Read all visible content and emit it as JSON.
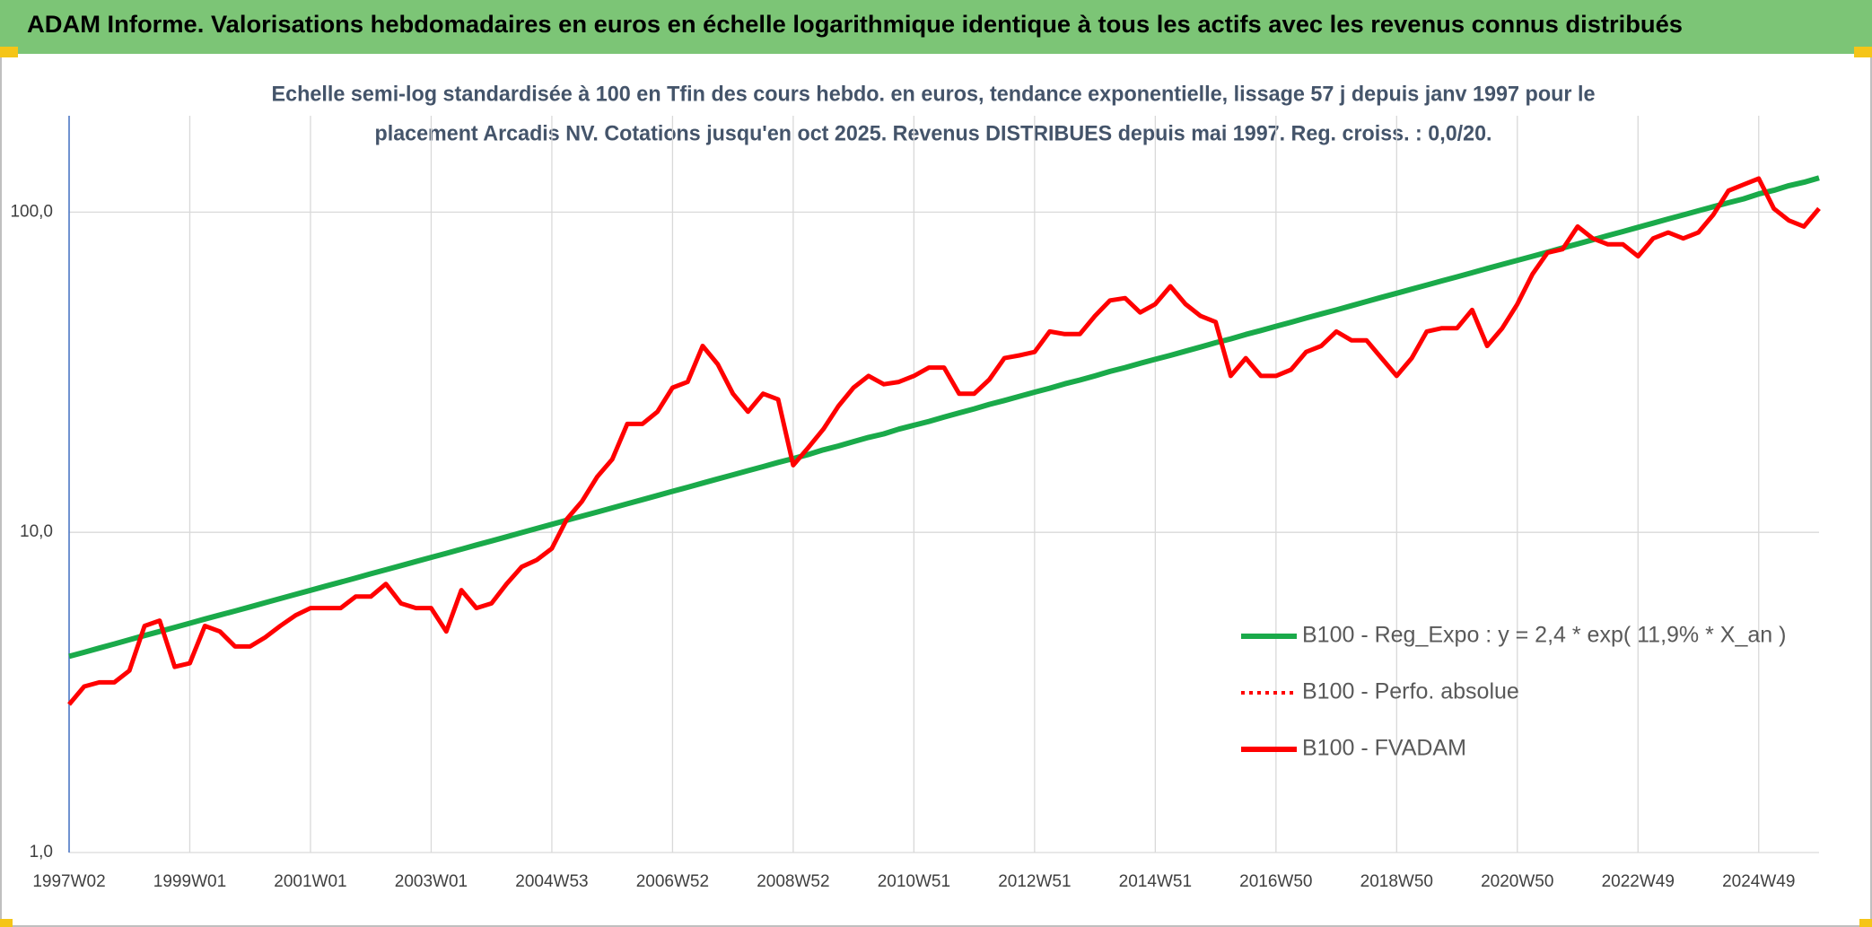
{
  "header": {
    "title": "ADAM Informe. Valorisations hebdomadaires en euros en échelle logarithmique identique à tous les actifs avec les revenus connus distribués"
  },
  "chart_data": {
    "type": "line",
    "subtitle": [
      "Echelle semi-log standardisée à 100 en Tfin des cours hebdo. en euros, tendance exponentielle, lissage 57 j depuis janv 1997 pour le",
      "placement Arcadis NV. Cotations jusqu'en oct 2025. Revenus DISTRIBUES depuis mai 1997. Reg. croiss. : 0,0/20."
    ],
    "categories": [
      "1997W02",
      null,
      null,
      null,
      null,
      null,
      null,
      null,
      "1999W01",
      null,
      null,
      null,
      null,
      null,
      null,
      null,
      "2001W01",
      null,
      null,
      null,
      null,
      null,
      null,
      null,
      "2003W01",
      null,
      null,
      null,
      null,
      null,
      null,
      null,
      "2004W53",
      null,
      null,
      null,
      null,
      null,
      null,
      null,
      "2006W52",
      null,
      null,
      null,
      null,
      null,
      null,
      null,
      "2008W52",
      null,
      null,
      null,
      null,
      null,
      null,
      null,
      "2010W51",
      null,
      null,
      null,
      null,
      null,
      null,
      null,
      "2012W51",
      null,
      null,
      null,
      null,
      null,
      null,
      null,
      "2014W51",
      null,
      null,
      null,
      null,
      null,
      null,
      null,
      "2016W50",
      null,
      null,
      null,
      null,
      null,
      null,
      null,
      "2018W50",
      null,
      null,
      null,
      null,
      null,
      null,
      null,
      "2020W50",
      null,
      null,
      null,
      null,
      null,
      null,
      null,
      "2022W49",
      null,
      null,
      null,
      null,
      null,
      null,
      null,
      "2024W49",
      null,
      null,
      null,
      null
    ],
    "series": [
      {
        "name": "B100 - Reg_Expo : y = 2,4 * exp( 11,9% *  X_an )",
        "color": "#1aaa4a",
        "dash": "solid",
        "values": [
          4.1,
          4.22,
          4.35,
          4.48,
          4.62,
          4.76,
          4.9,
          5.05,
          5.2,
          5.36,
          5.52,
          5.68,
          5.85,
          6.03,
          6.21,
          6.4,
          6.59,
          6.79,
          6.99,
          7.2,
          7.42,
          7.64,
          7.87,
          8.11,
          8.35,
          8.6,
          8.86,
          9.13,
          9.4,
          9.68,
          9.98,
          10.28,
          10.59,
          10.91,
          11.24,
          11.57,
          11.92,
          12.28,
          12.65,
          13.03,
          13.43,
          13.83,
          14.25,
          14.68,
          15.12,
          15.58,
          16.04,
          16.53,
          17.0,
          17.5,
          18.1,
          18.6,
          19.2,
          19.8,
          20.3,
          21.0,
          21.6,
          22.2,
          22.9,
          23.6,
          24.3,
          25.1,
          25.8,
          26.6,
          27.4,
          28.2,
          29.1,
          29.9,
          30.8,
          31.8,
          32.7,
          33.7,
          34.7,
          35.7,
          36.8,
          37.9,
          39.1,
          40.2,
          41.5,
          42.7,
          44.0,
          45.3,
          46.7,
          48.1,
          49.5,
          51.0,
          52.6,
          54.2,
          55.8,
          57.5,
          59.2,
          61.0,
          62.8,
          64.7,
          66.7,
          68.7,
          70.7,
          72.8,
          75.0,
          77.3,
          79.6,
          82.0,
          84.5,
          87.0,
          89.7,
          92.4,
          95.2,
          98.0,
          101,
          104,
          107,
          110,
          114,
          117,
          121,
          124,
          128
        ]
      },
      {
        "name": "B100 - Perfo. absolue",
        "color": "#ff0000",
        "dash": "dotted"
      },
      {
        "name": "B100 - FVADAM",
        "color": "#ff0000",
        "dash": "solid",
        "values": [
          2.9,
          3.3,
          3.4,
          3.4,
          3.7,
          5.1,
          5.3,
          3.8,
          3.9,
          5.1,
          4.9,
          4.4,
          4.4,
          4.7,
          5.1,
          5.5,
          5.8,
          5.8,
          5.8,
          6.3,
          6.3,
          6.9,
          6.0,
          5.8,
          5.8,
          4.9,
          6.6,
          5.8,
          6.0,
          6.9,
          7.8,
          8.2,
          8.9,
          11.0,
          12.5,
          14.9,
          16.9,
          21.8,
          21.8,
          23.8,
          28.3,
          29.5,
          38.2,
          33.5,
          27.1,
          23.8,
          27.1,
          26.0,
          16.2,
          18.4,
          21.0,
          24.8,
          28.3,
          30.8,
          29.0,
          29.5,
          30.8,
          32.7,
          32.7,
          27.1,
          27.1,
          30.0,
          35.0,
          35.7,
          36.6,
          42.4,
          41.6,
          41.6,
          47.4,
          53.0,
          53.9,
          48.6,
          51.6,
          58.7,
          51.6,
          47.4,
          45.4,
          30.8,
          35.0,
          30.8,
          30.8,
          32.2,
          36.6,
          38.2,
          42.4,
          39.8,
          39.8,
          35.0,
          30.8,
          35.0,
          42.4,
          43.4,
          43.4,
          49.5,
          38.2,
          43.4,
          51.6,
          64.0,
          74.7,
          76.6,
          90.2,
          82.8,
          79.3,
          79.3,
          72.8,
          82.8,
          86.4,
          82.8,
          86.4,
          98.3,
          116.7,
          121.9,
          127.3,
          102.6,
          94.2,
          90.2,
          102.6
        ]
      }
    ],
    "ylim": [
      1,
      200
    ],
    "log": true,
    "yticks": [
      {
        "value": 1,
        "label": "1,0"
      },
      {
        "value": 10,
        "label": "10,0"
      },
      {
        "value": 100,
        "label": "100,0"
      }
    ],
    "grid": true,
    "legend": "right"
  }
}
